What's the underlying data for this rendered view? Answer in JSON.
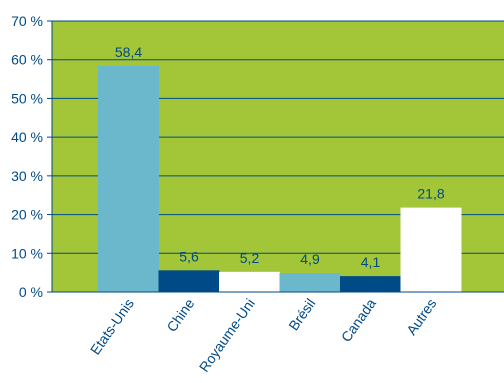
{
  "chart_data": {
    "type": "bar",
    "categories": [
      "Etats-Unis",
      "Chine",
      "Royaume-Uni",
      "Brésil",
      "Canada",
      "Autres"
    ],
    "values": [
      58.4,
      5.6,
      5.2,
      4.9,
      4.1,
      21.8
    ],
    "value_labels": [
      "58,4",
      "5,6",
      "5,2",
      "4,9",
      "4,1",
      "21,8"
    ],
    "bar_colors": [
      "#6bb8cc",
      "#004a87",
      "#ffffff",
      "#6bb8cc",
      "#004a87",
      "#ffffff"
    ],
    "y_ticks": [
      0,
      10,
      20,
      30,
      40,
      50,
      60,
      70
    ],
    "y_tick_labels": [
      "0 %",
      "10 %",
      "20 %",
      "30 %",
      "40 %",
      "50 %",
      "60 %",
      "70 %"
    ],
    "ylim": [
      0,
      70
    ],
    "grid": true,
    "title": "",
    "xlabel": "",
    "ylabel": "",
    "colors": {
      "plot_background": "#a3c639",
      "gridline": "#004a87",
      "axis": "#004a87",
      "text": "#004a87"
    }
  }
}
